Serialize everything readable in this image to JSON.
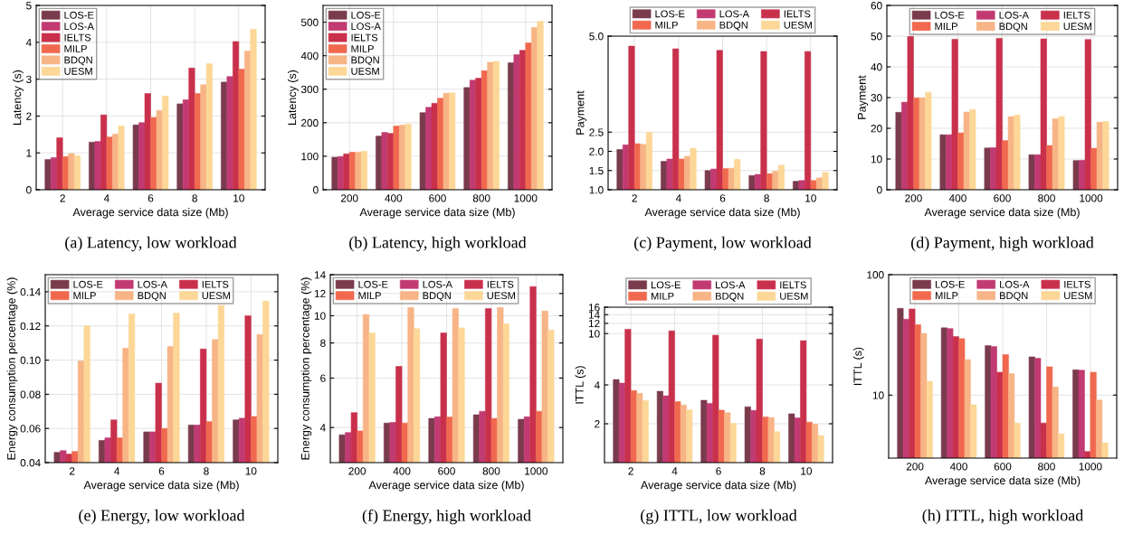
{
  "chart_data": [
    {
      "type": "bar",
      "title": "(a) Latency, low workload",
      "xlabel": "Average service data size (Mb)",
      "ylabel": "Latency (s)",
      "categories": [
        "2",
        "4",
        "6",
        "8",
        "10"
      ],
      "ylim": [
        0,
        5
      ],
      "yticks": [
        0,
        1,
        2,
        3,
        4,
        5
      ],
      "grid": true,
      "legend": "top left",
      "series": [
        {
          "name": "LOS-E",
          "color": "#7a3b4c",
          "values": [
            0.82,
            1.29,
            1.76,
            2.33,
            2.92
          ]
        },
        {
          "name": "LOS-A",
          "color": "#c23a72",
          "values": [
            0.87,
            1.31,
            1.82,
            2.44,
            3.07
          ]
        },
        {
          "name": "IELTS",
          "color": "#c9304c",
          "values": [
            1.41,
            2.03,
            2.61,
            3.3,
            4.02
          ]
        },
        {
          "name": "MILP",
          "color": "#f0694f",
          "values": [
            0.9,
            1.43,
            1.96,
            2.61,
            3.27
          ]
        },
        {
          "name": "BDQN",
          "color": "#f7b486",
          "values": [
            0.98,
            1.51,
            2.15,
            2.85,
            3.76
          ]
        },
        {
          "name": "UESM",
          "color": "#fcd797",
          "values": [
            0.92,
            1.73,
            2.54,
            3.42,
            4.35
          ]
        }
      ]
    },
    {
      "type": "bar",
      "title": "(b) Latency, high workload",
      "xlabel": "Average service data size (Mb)",
      "ylabel": "Latency (s)",
      "categories": [
        "200",
        "400",
        "600",
        "800",
        "1000"
      ],
      "ylim": [
        0,
        550
      ],
      "yticks": [
        0,
        100,
        200,
        300,
        400,
        500
      ],
      "grid": true,
      "legend": "top left",
      "series": [
        {
          "name": "LOS-E",
          "color": "#7a3b4c",
          "values": [
            97,
            160,
            230,
            305,
            379
          ]
        },
        {
          "name": "LOS-A",
          "color": "#c23a72",
          "values": [
            99,
            171,
            246,
            327,
            403
          ]
        },
        {
          "name": "IELTS",
          "color": "#c9304c",
          "values": [
            107,
            168,
            258,
            333,
            416
          ]
        },
        {
          "name": "MILP",
          "color": "#f0694f",
          "values": [
            112,
            190,
            273,
            355,
            438
          ]
        },
        {
          "name": "BDQN",
          "color": "#f7b486",
          "values": [
            112,
            193,
            288,
            380,
            484
          ]
        },
        {
          "name": "UESM",
          "color": "#fcd797",
          "values": [
            115,
            196,
            289,
            383,
            503
          ]
        }
      ]
    },
    {
      "type": "bar",
      "title": "(c) Payment, low workload",
      "xlabel": "Average service data size (Mb)",
      "ylabel": "Payment",
      "categories": [
        "2",
        "4",
        "6",
        "8",
        "10"
      ],
      "ylim": [
        1.0,
        5.0
      ],
      "yticks": [
        {
          "value": 1.0,
          "label": "1.0"
        },
        1.5,
        {
          "value": 2.0,
          "label": "2.0"
        },
        2.5,
        {
          "value": 5.0,
          "label": "5.0"
        }
      ],
      "grid": true,
      "legend": "top",
      "series": [
        {
          "name": "LOS-E",
          "color": "#7a3b4c",
          "values": [
            2.05,
            1.74,
            1.5,
            1.37,
            1.22
          ]
        },
        {
          "name": "LOS-A",
          "color": "#c23a72",
          "values": [
            2.17,
            1.8,
            1.54,
            1.4,
            1.24
          ]
        },
        {
          "name": "IELTS",
          "color": "#c9304c",
          "values": [
            4.74,
            4.67,
            4.63,
            4.6,
            4.6
          ]
        },
        {
          "name": "MILP",
          "color": "#f0694f",
          "values": [
            2.2,
            1.8,
            1.55,
            1.42,
            1.24
          ]
        },
        {
          "name": "BDQN",
          "color": "#f7b486",
          "values": [
            2.18,
            1.87,
            1.56,
            1.48,
            1.31
          ]
        },
        {
          "name": "UESM",
          "color": "#fcd797",
          "values": [
            2.49,
            2.08,
            1.79,
            1.64,
            1.45
          ]
        }
      ]
    },
    {
      "type": "bar",
      "title": "(d) Payment, high workload",
      "xlabel": "Average service data size (Mb)",
      "ylabel": "Payment",
      "categories": [
        "200",
        "400",
        "600",
        "800",
        "1000"
      ],
      "ylim": [
        0,
        60
      ],
      "yticks": [
        0,
        10,
        20,
        30,
        40,
        50,
        60
      ],
      "grid": true,
      "legend": "top",
      "series": [
        {
          "name": "LOS-E",
          "color": "#7a3b4c",
          "values": [
            25.2,
            17.9,
            13.6,
            11.4,
            9.5
          ]
        },
        {
          "name": "LOS-A",
          "color": "#c23a72",
          "values": [
            28.5,
            17.9,
            13.7,
            11.4,
            9.6
          ]
        },
        {
          "name": "IELTS",
          "color": "#c9304c",
          "values": [
            49.9,
            49.0,
            49.3,
            49.1,
            48.9
          ]
        },
        {
          "name": "MILP",
          "color": "#f0694f",
          "values": [
            29.9,
            18.5,
            16.0,
            14.4,
            13.5
          ]
        },
        {
          "name": "BDQN",
          "color": "#f7b486",
          "values": [
            29.9,
            25.3,
            23.8,
            23.1,
            22.0
          ]
        },
        {
          "name": "UESM",
          "color": "#fcd797",
          "values": [
            31.7,
            26.1,
            24.3,
            23.8,
            22.2
          ]
        }
      ]
    },
    {
      "type": "bar",
      "title": "(e) Energy, low workload",
      "xlabel": "Average service data size (Mb)",
      "ylabel": "Energy consumption percentage (%)",
      "categories": [
        "2",
        "4",
        "6",
        "8",
        "10"
      ],
      "ylim": [
        0.04,
        0.15
      ],
      "yticks": [
        0.04,
        0.06,
        0.08,
        {
          "value": 0.1,
          "label": "0.10"
        },
        0.12,
        0.14
      ],
      "grid": true,
      "legend": "top left",
      "series": [
        {
          "name": "LOS-E",
          "color": "#7a3b4c",
          "values": [
            0.046,
            0.053,
            0.058,
            0.062,
            0.065
          ]
        },
        {
          "name": "LOS-A",
          "color": "#c23a72",
          "values": [
            0.047,
            0.0545,
            0.058,
            0.062,
            0.066
          ]
        },
        {
          "name": "IELTS",
          "color": "#c9304c",
          "values": [
            0.045,
            0.065,
            0.0865,
            0.1065,
            0.126
          ]
        },
        {
          "name": "MILP",
          "color": "#f0694f",
          "values": [
            0.0465,
            0.0545,
            0.06,
            0.064,
            0.067
          ]
        },
        {
          "name": "BDQN",
          "color": "#f7b486",
          "values": [
            0.0995,
            0.107,
            0.108,
            0.112,
            0.115
          ]
        },
        {
          "name": "UESM",
          "color": "#fcd797",
          "values": [
            0.12,
            0.127,
            0.1275,
            0.132,
            0.1345
          ]
        }
      ]
    },
    {
      "type": "bar",
      "title": "(f) Energy, high workload",
      "xlabel": "Average service data size (Mb)",
      "ylabel": "Energy consumption percentage (%)",
      "categories": [
        "200",
        "400",
        "600",
        "800",
        "1000"
      ],
      "log": true,
      "ylim": [
        3,
        14
      ],
      "yticks": [
        4,
        6,
        8,
        10,
        12,
        14
      ],
      "grid": true,
      "legend": "top left",
      "series": [
        {
          "name": "LOS-E",
          "color": "#7a3b4c",
          "values": [
            3.77,
            4.15,
            4.31,
            4.44,
            4.28
          ]
        },
        {
          "name": "LOS-A",
          "color": "#c23a72",
          "values": [
            3.84,
            4.17,
            4.37,
            4.57,
            4.37
          ]
        },
        {
          "name": "IELTS",
          "color": "#c9304c",
          "values": [
            4.52,
            6.6,
            8.69,
            10.6,
            12.7
          ]
        },
        {
          "name": "MILP",
          "color": "#f0694f",
          "values": [
            3.89,
            4.15,
            4.36,
            4.31,
            4.57
          ]
        },
        {
          "name": "BDQN",
          "color": "#f7b486",
          "values": [
            10.1,
            10.7,
            10.6,
            10.7,
            10.4
          ]
        },
        {
          "name": "UESM",
          "color": "#fcd797",
          "values": [
            8.69,
            9.0,
            9.05,
            9.36,
            8.9
          ]
        }
      ]
    },
    {
      "type": "bar",
      "title": "(g) ITTL, low workload",
      "xlabel": "Average service data size (Mb)",
      "ylabel": "ITTL (s)",
      "categories": [
        "2",
        "4",
        "6",
        "8",
        "10"
      ],
      "log": true,
      "ylim": [
        1,
        16
      ],
      "yticks": [
        2,
        4,
        10,
        12,
        14,
        16
      ],
      "grid": true,
      "legend": "top",
      "series": [
        {
          "name": "LOS-E",
          "color": "#7a3b4c",
          "values": [
            4.4,
            3.57,
            3.04,
            2.71,
            2.39
          ]
        },
        {
          "name": "LOS-A",
          "color": "#c23a72",
          "values": [
            4.13,
            3.29,
            2.88,
            2.54,
            2.22
          ]
        },
        {
          "name": "IELTS",
          "color": "#c9304c",
          "values": [
            10.8,
            10.5,
            9.7,
            9.05,
            8.8
          ]
        },
        {
          "name": "MILP",
          "color": "#f0694f",
          "values": [
            3.62,
            2.97,
            2.55,
            2.26,
            2.06
          ]
        },
        {
          "name": "BDQN",
          "color": "#f7b486",
          "values": [
            3.44,
            2.8,
            2.44,
            2.24,
            1.98
          ]
        },
        {
          "name": "UESM",
          "color": "#fcd797",
          "values": [
            3.03,
            2.56,
            2.02,
            1.74,
            1.62
          ]
        }
      ]
    },
    {
      "type": "bar",
      "title": "(h) ITTL, high workload",
      "xlabel": "Average service data size (Mb)",
      "ylabel": "ITTL (s)",
      "categories": [
        "200",
        "400",
        "600",
        "800",
        "1000"
      ],
      "log": true,
      "ylim": [
        3,
        100
      ],
      "yticks": [
        10,
        100
      ],
      "grid": true,
      "legend": "top",
      "series": [
        {
          "name": "LOS-E",
          "color": "#7a3b4c",
          "values": [
            52.5,
            36.2,
            25.8,
            20.8,
            16.2
          ]
        },
        {
          "name": "LOS-A",
          "color": "#c23a72",
          "values": [
            42.7,
            35.7,
            25.3,
            20.2,
            16.1
          ]
        },
        {
          "name": "IELTS",
          "color": "#c9304c",
          "values": [
            51.9,
            30.6,
            15.5,
            5.87,
            3.4
          ]
        },
        {
          "name": "MILP",
          "color": "#f0694f",
          "values": [
            38.5,
            29.4,
            21.7,
            17.2,
            15.5
          ]
        },
        {
          "name": "BDQN",
          "color": "#f7b486",
          "values": [
            32.6,
            19.7,
            15.1,
            11.7,
            9.1
          ]
        },
        {
          "name": "UESM",
          "color": "#fcd797",
          "values": [
            13.0,
            8.3,
            5.87,
            4.77,
            4.02
          ]
        }
      ]
    }
  ]
}
